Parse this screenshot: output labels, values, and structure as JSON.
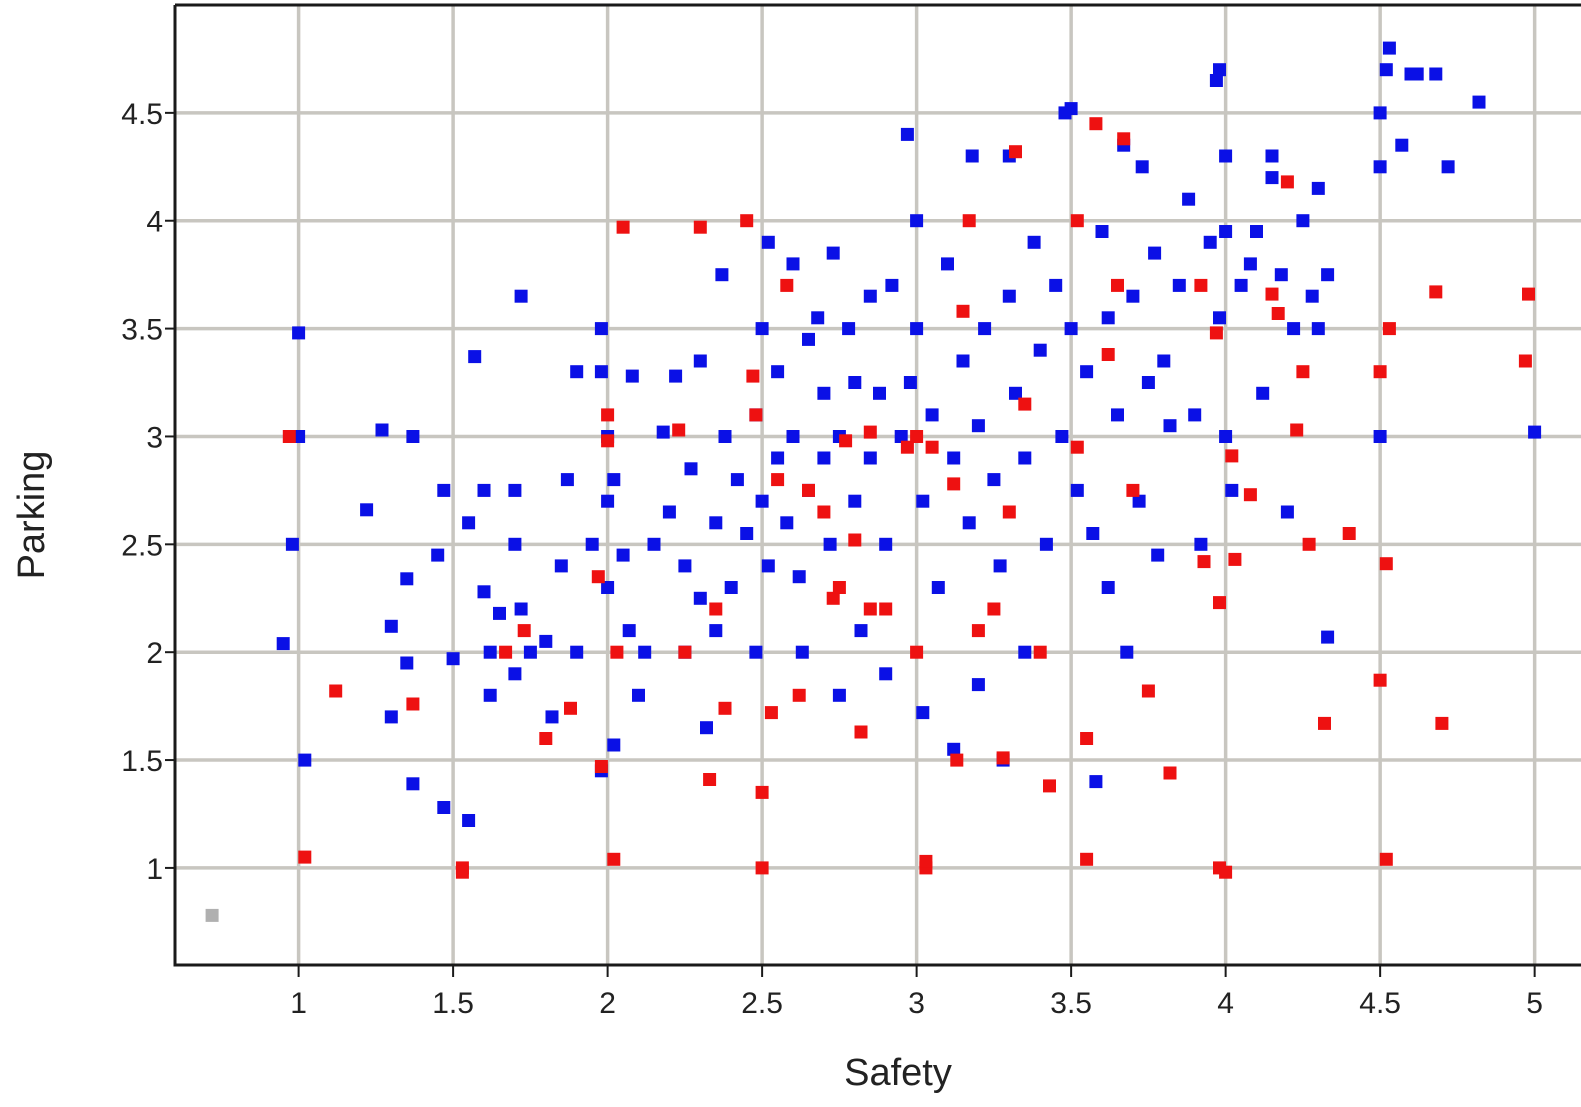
{
  "chart_data": {
    "type": "scatter",
    "xlabel": "Safety",
    "ylabel": "Parking",
    "xlim": [
      0.6,
      5.15
    ],
    "ylim": [
      0.55,
      5.0
    ],
    "xticks": [
      "1",
      "1.5",
      "2",
      "2.5",
      "3",
      "3.5",
      "4",
      "4.5",
      "5"
    ],
    "yticks": [
      "1",
      "1.5",
      "2",
      "2.5",
      "3",
      "3.5",
      "4",
      "4.5"
    ],
    "grid": true,
    "legend": "none",
    "colors": {
      "blue": "#0a10e6",
      "red": "#ee1111",
      "grid": "#c8c6c0"
    },
    "series": [
      {
        "color": "#0a10e6",
        "points": [
          [
            1.0,
            3.48
          ],
          [
            1.0,
            3.0
          ],
          [
            0.98,
            2.5
          ],
          [
            0.95,
            2.04
          ],
          [
            1.02,
            1.5
          ],
          [
            1.27,
            3.03
          ],
          [
            1.22,
            2.66
          ],
          [
            1.3,
            2.12
          ],
          [
            1.35,
            2.34
          ],
          [
            1.37,
            3.0
          ],
          [
            1.35,
            1.95
          ],
          [
            1.3,
            1.7
          ],
          [
            1.37,
            1.39
          ],
          [
            1.45,
            2.45
          ],
          [
            1.47,
            2.75
          ],
          [
            1.5,
            1.97
          ],
          [
            1.47,
            1.28
          ],
          [
            1.55,
            1.22
          ],
          [
            1.57,
            3.37
          ],
          [
            1.6,
            2.75
          ],
          [
            1.55,
            2.6
          ],
          [
            1.6,
            2.28
          ],
          [
            1.62,
            2.0
          ],
          [
            1.62,
            1.8
          ],
          [
            1.65,
            2.18
          ],
          [
            1.72,
            3.65
          ],
          [
            1.7,
            2.75
          ],
          [
            1.7,
            2.5
          ],
          [
            1.72,
            2.2
          ],
          [
            1.7,
            1.9
          ],
          [
            1.75,
            2.0
          ],
          [
            1.8,
            2.05
          ],
          [
            1.82,
            1.7
          ],
          [
            1.85,
            2.4
          ],
          [
            1.87,
            2.8
          ],
          [
            1.9,
            3.3
          ],
          [
            1.9,
            2.0
          ],
          [
            1.95,
            2.5
          ],
          [
            1.98,
            3.5
          ],
          [
            1.98,
            3.3
          ],
          [
            2.0,
            3.0
          ],
          [
            2.0,
            2.7
          ],
          [
            2.0,
            2.3
          ],
          [
            2.02,
            2.8
          ],
          [
            2.02,
            1.57
          ],
          [
            1.98,
            1.45
          ],
          [
            2.05,
            2.45
          ],
          [
            2.07,
            2.1
          ],
          [
            2.1,
            1.8
          ],
          [
            2.08,
            3.28
          ],
          [
            2.12,
            2.0
          ],
          [
            2.15,
            2.5
          ],
          [
            2.18,
            3.02
          ],
          [
            2.2,
            2.65
          ],
          [
            2.22,
            3.28
          ],
          [
            2.25,
            2.4
          ],
          [
            2.25,
            2.0
          ],
          [
            2.27,
            2.85
          ],
          [
            2.3,
            3.35
          ],
          [
            2.3,
            2.25
          ],
          [
            2.32,
            1.65
          ],
          [
            2.35,
            2.6
          ],
          [
            2.35,
            2.1
          ],
          [
            2.37,
            3.75
          ],
          [
            2.38,
            3.0
          ],
          [
            2.4,
            2.3
          ],
          [
            2.42,
            2.8
          ],
          [
            2.45,
            2.55
          ],
          [
            2.48,
            3.1
          ],
          [
            2.48,
            2.0
          ],
          [
            2.5,
            3.5
          ],
          [
            2.5,
            2.7
          ],
          [
            2.52,
            3.9
          ],
          [
            2.52,
            2.4
          ],
          [
            2.55,
            3.3
          ],
          [
            2.55,
            2.9
          ],
          [
            2.58,
            2.6
          ],
          [
            2.6,
            3.8
          ],
          [
            2.6,
            3.0
          ],
          [
            2.62,
            2.35
          ],
          [
            2.63,
            2.0
          ],
          [
            2.65,
            3.45
          ],
          [
            2.65,
            2.75
          ],
          [
            2.68,
            3.55
          ],
          [
            2.7,
            3.2
          ],
          [
            2.7,
            2.9
          ],
          [
            2.72,
            2.5
          ],
          [
            2.73,
            3.85
          ],
          [
            2.75,
            3.0
          ],
          [
            2.75,
            1.8
          ],
          [
            2.78,
            3.5
          ],
          [
            2.8,
            3.25
          ],
          [
            2.8,
            2.7
          ],
          [
            2.82,
            2.1
          ],
          [
            2.85,
            3.65
          ],
          [
            2.85,
            2.9
          ],
          [
            2.88,
            3.2
          ],
          [
            2.9,
            2.5
          ],
          [
            2.9,
            1.9
          ],
          [
            2.92,
            3.7
          ],
          [
            2.95,
            3.0
          ],
          [
            2.97,
            4.4
          ],
          [
            2.98,
            3.25
          ],
          [
            3.0,
            4.0
          ],
          [
            3.0,
            3.5
          ],
          [
            3.02,
            2.7
          ],
          [
            3.02,
            1.72
          ],
          [
            3.05,
            3.1
          ],
          [
            3.07,
            2.3
          ],
          [
            3.1,
            3.8
          ],
          [
            3.12,
            2.9
          ],
          [
            3.12,
            1.55
          ],
          [
            3.15,
            3.35
          ],
          [
            3.17,
            2.6
          ],
          [
            3.18,
            4.3
          ],
          [
            3.2,
            3.05
          ],
          [
            3.2,
            1.85
          ],
          [
            3.22,
            3.5
          ],
          [
            3.25,
            2.8
          ],
          [
            3.27,
            2.4
          ],
          [
            3.28,
            1.5
          ],
          [
            3.3,
            4.3
          ],
          [
            3.3,
            3.65
          ],
          [
            3.32,
            3.2
          ],
          [
            3.35,
            2.9
          ],
          [
            3.35,
            2.0
          ],
          [
            3.38,
            3.9
          ],
          [
            3.4,
            3.4
          ],
          [
            3.42,
            2.5
          ],
          [
            3.45,
            3.7
          ],
          [
            3.47,
            3.0
          ],
          [
            3.48,
            4.5
          ],
          [
            3.5,
            4.52
          ],
          [
            3.5,
            3.5
          ],
          [
            3.52,
            2.75
          ],
          [
            3.55,
            3.3
          ],
          [
            3.57,
            2.55
          ],
          [
            3.58,
            1.4
          ],
          [
            3.6,
            3.95
          ],
          [
            3.62,
            3.55
          ],
          [
            3.62,
            2.3
          ],
          [
            3.65,
            3.1
          ],
          [
            3.67,
            4.35
          ],
          [
            3.68,
            2.0
          ],
          [
            3.7,
            3.65
          ],
          [
            3.72,
            2.7
          ],
          [
            3.73,
            4.25
          ],
          [
            3.75,
            3.25
          ],
          [
            3.77,
            3.85
          ],
          [
            3.78,
            2.45
          ],
          [
            3.8,
            3.35
          ],
          [
            3.82,
            3.05
          ],
          [
            3.85,
            3.7
          ],
          [
            3.88,
            4.1
          ],
          [
            3.9,
            3.1
          ],
          [
            3.92,
            2.5
          ],
          [
            3.95,
            3.9
          ],
          [
            3.97,
            4.65
          ],
          [
            3.98,
            4.7
          ],
          [
            3.98,
            3.55
          ],
          [
            4.0,
            4.3
          ],
          [
            4.0,
            3.95
          ],
          [
            4.0,
            3.0
          ],
          [
            4.02,
            2.75
          ],
          [
            4.05,
            3.7
          ],
          [
            4.08,
            3.8
          ],
          [
            4.1,
            3.95
          ],
          [
            4.12,
            3.2
          ],
          [
            4.15,
            4.3
          ],
          [
            4.15,
            4.2
          ],
          [
            4.18,
            3.75
          ],
          [
            4.2,
            2.65
          ],
          [
            4.22,
            3.5
          ],
          [
            4.25,
            4.0
          ],
          [
            4.28,
            3.65
          ],
          [
            4.3,
            4.15
          ],
          [
            4.3,
            3.5
          ],
          [
            4.33,
            3.75
          ],
          [
            4.33,
            2.07
          ],
          [
            4.5,
            4.5
          ],
          [
            4.52,
            4.7
          ],
          [
            4.53,
            4.8
          ],
          [
            4.5,
            4.25
          ],
          [
            4.5,
            3.0
          ],
          [
            4.57,
            4.35
          ],
          [
            4.6,
            4.68
          ],
          [
            4.62,
            4.68
          ],
          [
            4.68,
            4.68
          ],
          [
            4.72,
            4.25
          ],
          [
            4.82,
            4.55
          ],
          [
            5.0,
            3.02
          ]
        ]
      },
      {
        "color": "#ee1111",
        "points": [
          [
            0.97,
            3.0
          ],
          [
            1.02,
            1.05
          ],
          [
            1.12,
            1.82
          ],
          [
            1.37,
            1.76
          ],
          [
            1.53,
            1.0
          ],
          [
            1.53,
            0.98
          ],
          [
            1.67,
            2.0
          ],
          [
            1.73,
            2.1
          ],
          [
            1.8,
            1.6
          ],
          [
            1.88,
            1.74
          ],
          [
            1.97,
            2.35
          ],
          [
            1.98,
            1.47
          ],
          [
            2.0,
            3.1
          ],
          [
            2.0,
            2.98
          ],
          [
            2.02,
            1.04
          ],
          [
            2.03,
            2.0
          ],
          [
            2.05,
            3.97
          ],
          [
            2.23,
            3.03
          ],
          [
            2.25,
            2.0
          ],
          [
            2.3,
            3.97
          ],
          [
            2.33,
            1.41
          ],
          [
            2.35,
            2.2
          ],
          [
            2.38,
            1.74
          ],
          [
            2.45,
            4.0
          ],
          [
            2.47,
            3.28
          ],
          [
            2.48,
            3.1
          ],
          [
            2.5,
            1.35
          ],
          [
            2.5,
            1.0
          ],
          [
            2.53,
            1.72
          ],
          [
            2.55,
            2.8
          ],
          [
            2.58,
            3.7
          ],
          [
            2.62,
            1.8
          ],
          [
            2.65,
            2.75
          ],
          [
            2.7,
            2.65
          ],
          [
            2.73,
            2.25
          ],
          [
            2.75,
            2.3
          ],
          [
            2.77,
            2.98
          ],
          [
            2.8,
            2.52
          ],
          [
            2.82,
            1.63
          ],
          [
            2.85,
            3.02
          ],
          [
            2.85,
            2.2
          ],
          [
            2.9,
            2.2
          ],
          [
            2.97,
            2.95
          ],
          [
            3.0,
            3.0
          ],
          [
            3.0,
            2.0
          ],
          [
            3.03,
            1.0
          ],
          [
            3.03,
            1.03
          ],
          [
            3.05,
            2.95
          ],
          [
            3.12,
            2.78
          ],
          [
            3.13,
            1.5
          ],
          [
            3.15,
            3.58
          ],
          [
            3.17,
            4.0
          ],
          [
            3.2,
            2.1
          ],
          [
            3.25,
            2.2
          ],
          [
            3.28,
            1.51
          ],
          [
            3.3,
            2.65
          ],
          [
            3.32,
            4.32
          ],
          [
            3.35,
            3.15
          ],
          [
            3.4,
            2.0
          ],
          [
            3.43,
            1.38
          ],
          [
            3.52,
            4.0
          ],
          [
            3.52,
            2.95
          ],
          [
            3.55,
            1.6
          ],
          [
            3.55,
            1.04
          ],
          [
            3.58,
            4.45
          ],
          [
            3.62,
            3.38
          ],
          [
            3.65,
            3.7
          ],
          [
            3.67,
            4.38
          ],
          [
            3.7,
            2.75
          ],
          [
            3.75,
            1.82
          ],
          [
            3.82,
            1.44
          ],
          [
            3.92,
            3.7
          ],
          [
            3.93,
            2.42
          ],
          [
            3.97,
            3.48
          ],
          [
            3.98,
            2.23
          ],
          [
            3.98,
            1.0
          ],
          [
            4.0,
            0.98
          ],
          [
            4.02,
            2.91
          ],
          [
            4.03,
            2.43
          ],
          [
            4.08,
            2.73
          ],
          [
            4.15,
            3.66
          ],
          [
            4.17,
            3.57
          ],
          [
            4.2,
            4.18
          ],
          [
            4.23,
            3.03
          ],
          [
            4.25,
            3.3
          ],
          [
            4.27,
            2.5
          ],
          [
            4.32,
            1.67
          ],
          [
            4.4,
            2.55
          ],
          [
            4.5,
            3.3
          ],
          [
            4.5,
            1.87
          ],
          [
            4.52,
            2.41
          ],
          [
            4.52,
            1.04
          ],
          [
            4.53,
            3.5
          ],
          [
            4.68,
            3.67
          ],
          [
            4.7,
            1.67
          ],
          [
            4.97,
            3.35
          ],
          [
            4.98,
            3.66
          ]
        ]
      },
      {
        "color": "#b0b0b0",
        "points": [
          [
            0.72,
            0.78
          ]
        ]
      }
    ]
  }
}
